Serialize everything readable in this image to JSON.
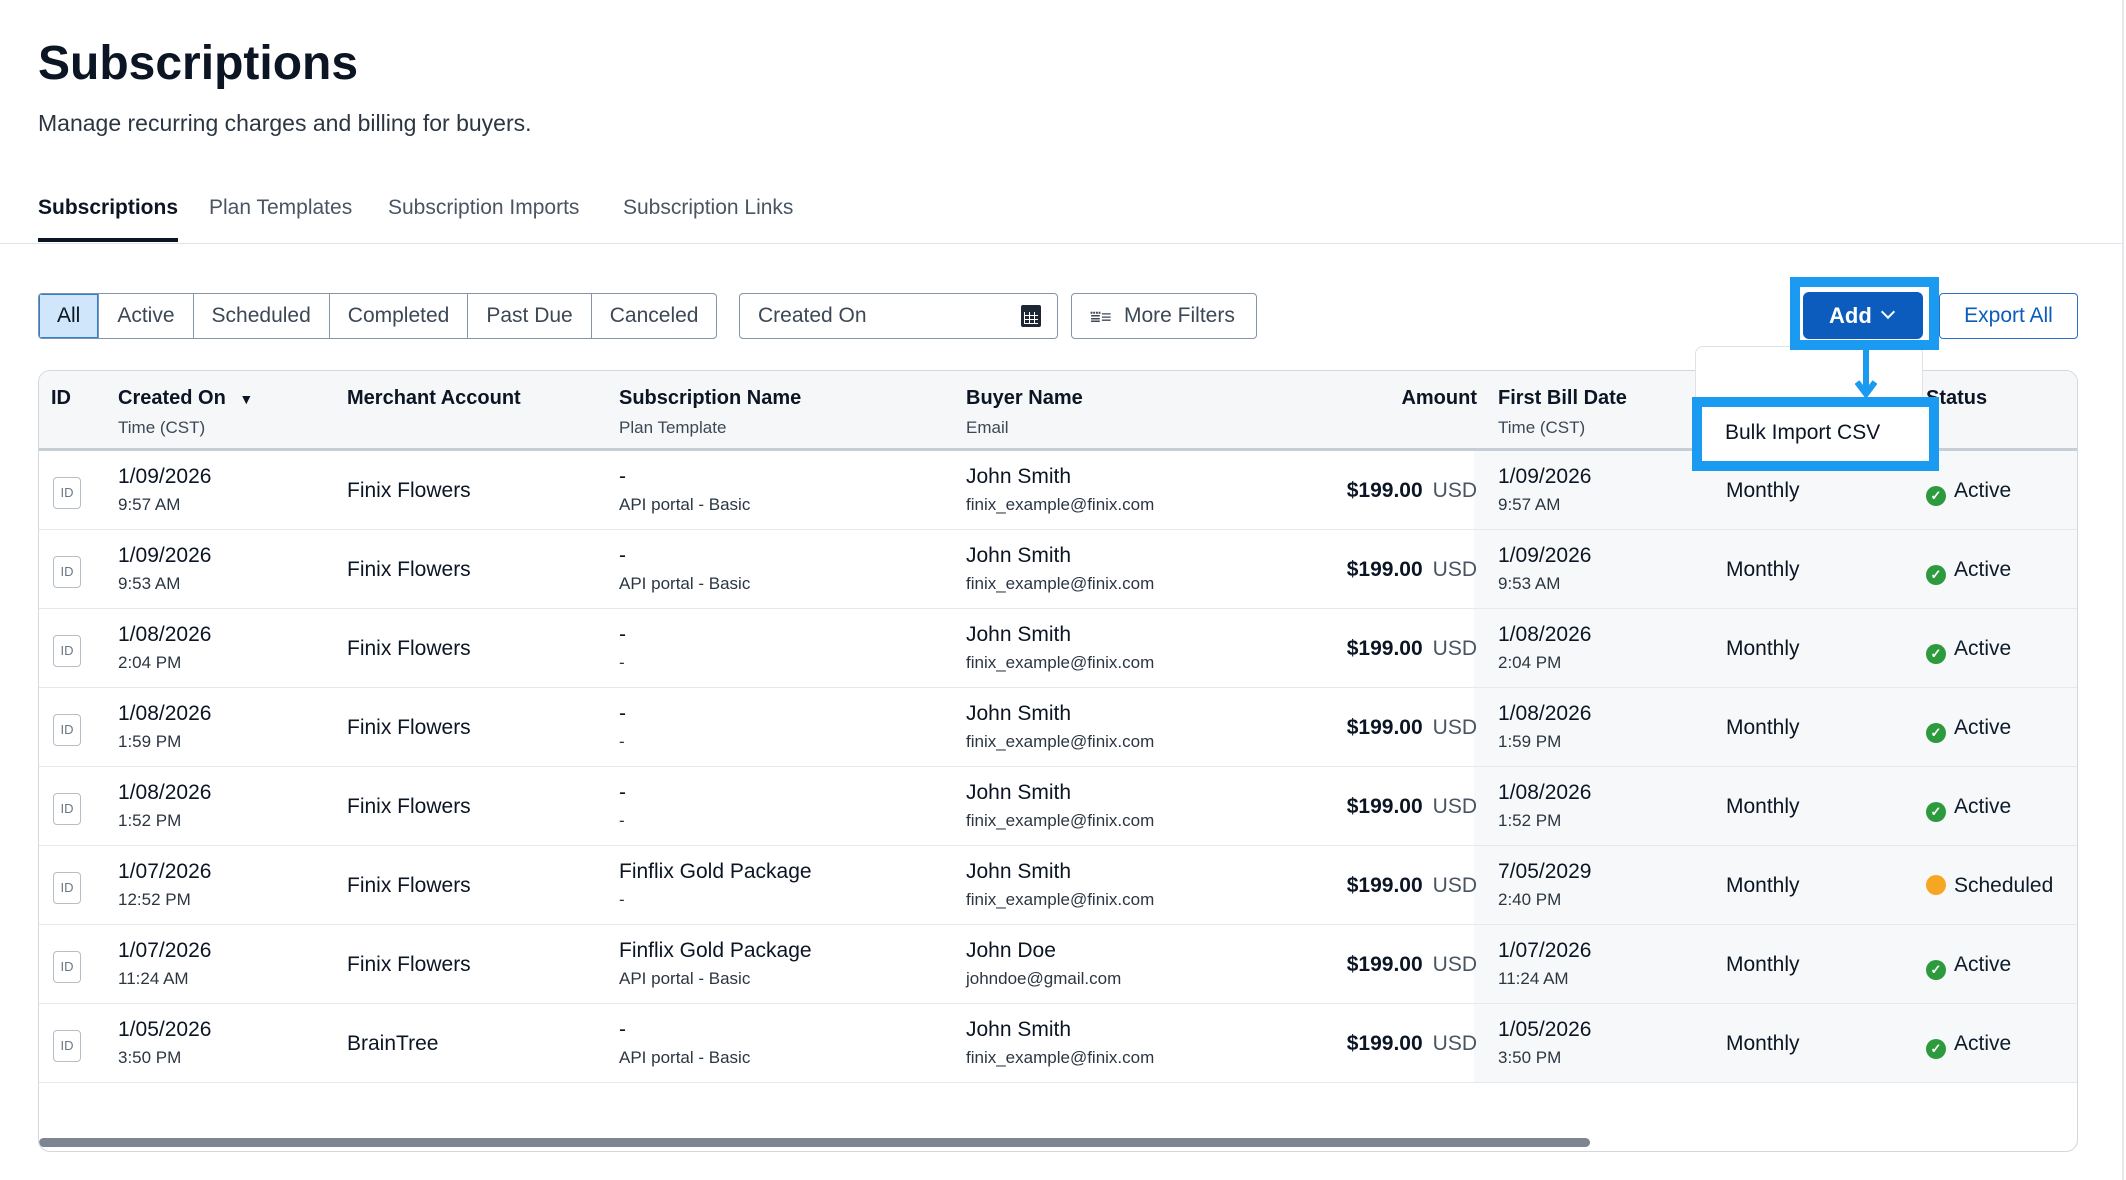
{
  "header": {
    "title": "Subscriptions",
    "subtitle": "Manage recurring charges and billing for buyers."
  },
  "tabs": [
    "Subscriptions",
    "Plan Templates",
    "Subscription Imports",
    "Subscription Links"
  ],
  "filters": {
    "segments": [
      "All",
      "Active",
      "Scheduled",
      "Completed",
      "Past Due",
      "Canceled"
    ],
    "date_placeholder": "Created On",
    "more_filters": "More Filters"
  },
  "actions": {
    "add": "Add",
    "export": "Export All",
    "menu_item": "Bulk Import CSV"
  },
  "columns": {
    "id": "ID",
    "created": "Created On",
    "created_sub": "Time (CST)",
    "merchant": "Merchant Account",
    "name": "Subscription Name",
    "name_sub": "Plan Template",
    "buyer": "Buyer Name",
    "buyer_sub": "Email",
    "amount": "Amount",
    "first_bill": "First Bill Date",
    "first_bill_sub": "Time (CST)",
    "status": "Status"
  },
  "colors": {
    "accent": "#0b5cbd",
    "highlight": "#1a9af0",
    "active": "#2e9a3e",
    "scheduled": "#f5a623"
  },
  "rows": [
    {
      "id": "ID",
      "date": "1/09/2026",
      "time": "9:57 AM",
      "merchant": "Finix Flowers",
      "name": "-",
      "plan": "API portal - Basic",
      "buyer": "John Smith",
      "email": "finix_example@finix.com",
      "amount": "$199.00",
      "currency": "USD",
      "bill_date": "1/09/2026",
      "bill_time": "9:57 AM",
      "frequency": "Monthly",
      "status": "Active"
    },
    {
      "id": "ID",
      "date": "1/09/2026",
      "time": "9:53 AM",
      "merchant": "Finix Flowers",
      "name": "-",
      "plan": "API portal - Basic",
      "buyer": "John Smith",
      "email": "finix_example@finix.com",
      "amount": "$199.00",
      "currency": "USD",
      "bill_date": "1/09/2026",
      "bill_time": "9:53 AM",
      "frequency": "Monthly",
      "status": "Active"
    },
    {
      "id": "ID",
      "date": "1/08/2026",
      "time": "2:04 PM",
      "merchant": "Finix Flowers",
      "name": "-",
      "plan": "-",
      "buyer": "John Smith",
      "email": "finix_example@finix.com",
      "amount": "$199.00",
      "currency": "USD",
      "bill_date": "1/08/2026",
      "bill_time": "2:04 PM",
      "frequency": "Monthly",
      "status": "Active"
    },
    {
      "id": "ID",
      "date": "1/08/2026",
      "time": "1:59 PM",
      "merchant": "Finix Flowers",
      "name": "-",
      "plan": "-",
      "buyer": "John Smith",
      "email": "finix_example@finix.com",
      "amount": "$199.00",
      "currency": "USD",
      "bill_date": "1/08/2026",
      "bill_time": "1:59 PM",
      "frequency": "Monthly",
      "status": "Active"
    },
    {
      "id": "ID",
      "date": "1/08/2026",
      "time": "1:52 PM",
      "merchant": "Finix Flowers",
      "name": "-",
      "plan": "-",
      "buyer": "John Smith",
      "email": "finix_example@finix.com",
      "amount": "$199.00",
      "currency": "USD",
      "bill_date": "1/08/2026",
      "bill_time": "1:52 PM",
      "frequency": "Monthly",
      "status": "Active"
    },
    {
      "id": "ID",
      "date": "1/07/2026",
      "time": "12:52 PM",
      "merchant": "Finix Flowers",
      "name": "Finflix Gold Package",
      "plan": "-",
      "buyer": "John Smith",
      "email": "finix_example@finix.com",
      "amount": "$199.00",
      "currency": "USD",
      "bill_date": "7/05/2029",
      "bill_time": "2:40 PM",
      "frequency": "Monthly",
      "status": "Scheduled"
    },
    {
      "id": "ID",
      "date": "1/07/2026",
      "time": "11:24 AM",
      "merchant": "Finix Flowers",
      "name": "Finflix Gold Package",
      "plan": "API portal - Basic",
      "buyer": "John Doe",
      "email": "johndoe@gmail.com",
      "amount": "$199.00",
      "currency": "USD",
      "bill_date": "1/07/2026",
      "bill_time": "11:24 AM",
      "frequency": "Monthly",
      "status": "Active"
    },
    {
      "id": "ID",
      "date": "1/05/2026",
      "time": "3:50 PM",
      "merchant": "BrainTree",
      "name": "-",
      "plan": "API portal - Basic",
      "buyer": "John Smith",
      "email": "finix_example@finix.com",
      "amount": "$199.00",
      "currency": "USD",
      "bill_date": "1/05/2026",
      "bill_time": "3:50 PM",
      "frequency": "Monthly",
      "status": "Active"
    }
  ]
}
